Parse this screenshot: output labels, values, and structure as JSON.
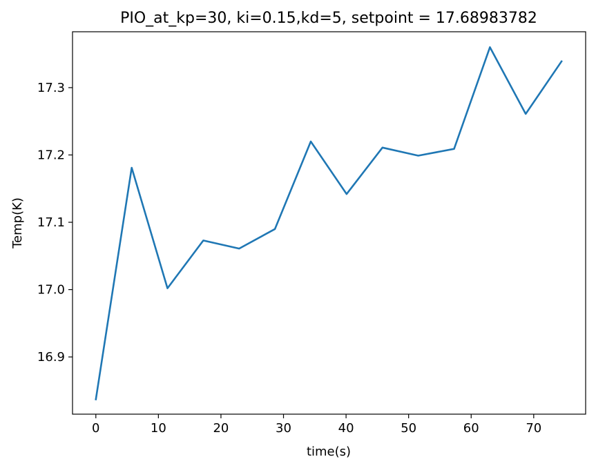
{
  "chart_data": {
    "type": "line",
    "title": "PIO_at_kp=30, ki=0.15,kd=5, setpoint = 17.68983782",
    "xlabel": "time(s)",
    "ylabel": "Temp(K)",
    "xlim": [
      -3.73,
      78.3
    ],
    "ylim": [
      16.815,
      17.383
    ],
    "xticks": [
      0,
      10,
      20,
      30,
      40,
      50,
      60,
      70
    ],
    "yticks": [
      16.9,
      17.0,
      17.1,
      17.2,
      17.3
    ],
    "ytick_labels": [
      "16.9",
      "17.0",
      "17.1",
      "17.2",
      "17.3"
    ],
    "grid": false,
    "series": [
      {
        "color": "#1f77b4",
        "x": [
          0.0,
          5.73,
          11.45,
          17.18,
          22.91,
          28.63,
          34.36,
          40.09,
          45.82,
          51.54,
          57.27,
          63.0,
          68.72,
          74.45
        ],
        "y": [
          16.837,
          17.181,
          17.002,
          17.073,
          17.061,
          17.09,
          17.22,
          17.142,
          17.211,
          17.199,
          17.209,
          17.36,
          17.261,
          17.339
        ]
      }
    ]
  }
}
